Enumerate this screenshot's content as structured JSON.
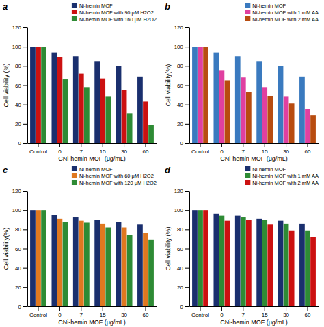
{
  "chart_data": [
    {
      "type": "bar",
      "title": "a",
      "xlabel": "CNi-hemin MOF (μg/mL)",
      "ylabel": "Cell viability (%)",
      "categories": [
        "Control",
        "0",
        "7",
        "15",
        "30",
        "60"
      ],
      "series": [
        {
          "name": "Ni-hemin MOF",
          "color": "#1a2f6e",
          "values": [
            100,
            94,
            90,
            85,
            80,
            69
          ]
        },
        {
          "name": "Ni-hemin MOF with 90 μM H2O2",
          "color": "#cc1111",
          "values": [
            100,
            89,
            72,
            67,
            55,
            43
          ]
        },
        {
          "name": "Ni-hemin MOF with 160 μM H2O2",
          "color": "#2e8b35",
          "values": [
            100,
            66,
            58,
            48,
            31,
            19
          ]
        }
      ],
      "ylim": [
        0,
        120
      ],
      "yticks": [
        0,
        20,
        40,
        60,
        80,
        100,
        120
      ],
      "grid": false,
      "legend": "upper right"
    },
    {
      "type": "bar",
      "title": "b",
      "xlabel": "CNi-hemin MOF (μg/mL)",
      "ylabel": "Cell viability(%)",
      "categories": [
        "Control",
        "0",
        "7",
        "15",
        "30",
        "60"
      ],
      "series": [
        {
          "name": "Ni-hemin MOF",
          "color": "#3a7abf",
          "values": [
            100,
            94,
            90,
            85,
            80,
            69
          ]
        },
        {
          "name": "Ni-hemin MOF with 1 mM AA",
          "color": "#e040a0",
          "values": [
            100,
            75,
            68,
            58,
            48,
            35
          ]
        },
        {
          "name": "Ni-hemin MOF with 2 mM AA",
          "color": "#b84c10",
          "values": [
            100,
            65,
            53,
            49,
            41,
            29
          ]
        }
      ],
      "ylim": [
        0,
        120
      ],
      "yticks": [
        0,
        20,
        40,
        60,
        80,
        100,
        120
      ],
      "grid": false,
      "legend": "upper right"
    },
    {
      "type": "bar",
      "title": "c",
      "xlabel": "CNi-hemin MOF (μg/mL)",
      "ylabel": "Cell viability(%)",
      "categories": [
        "Control",
        "0",
        "7",
        "15",
        "30",
        "60"
      ],
      "series": [
        {
          "name": "Ni-hemin MOF",
          "color": "#1a2f6e",
          "values": [
            100,
            95,
            93,
            90,
            88,
            85
          ]
        },
        {
          "name": "Ni-hemin MOF with 60 μM H2O2",
          "color": "#e07820",
          "values": [
            100,
            91,
            89,
            86,
            82,
            76
          ]
        },
        {
          "name": "Ni-hemin MOF with 120 μM H2O2",
          "color": "#2e8b35",
          "values": [
            100,
            88,
            87,
            82,
            74,
            69
          ]
        }
      ],
      "ylim": [
        0,
        120
      ],
      "yticks": [
        0,
        20,
        40,
        60,
        80,
        100,
        120
      ],
      "grid": false,
      "legend": "upper right"
    },
    {
      "type": "bar",
      "title": "d",
      "xlabel": "CNi-hemin MOF (μg/mL)",
      "ylabel": "Cell viability (%)",
      "categories": [
        "Control",
        "0",
        "7",
        "15",
        "30",
        "60"
      ],
      "series": [
        {
          "name": "Ni-hemin MOF",
          "color": "#1a2f6e",
          "values": [
            100,
            96,
            94,
            91,
            89,
            86
          ]
        },
        {
          "name": "Ni-hemin MOF with 1 mM AA",
          "color": "#2e8b35",
          "values": [
            100,
            94,
            93,
            90,
            86,
            79
          ]
        },
        {
          "name": "Ni-hemin MOF with 2 mM AA",
          "color": "#cc1111",
          "values": [
            100,
            89,
            90,
            85,
            79,
            72
          ]
        }
      ],
      "ylim": [
        0,
        120
      ],
      "yticks": [
        0,
        20,
        40,
        60,
        80,
        100,
        120
      ],
      "grid": false,
      "legend": "upper right"
    }
  ]
}
